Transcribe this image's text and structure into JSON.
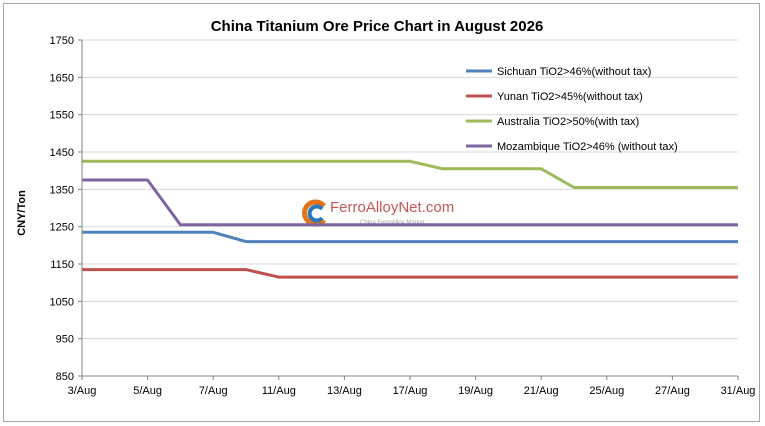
{
  "chart_data": {
    "type": "line",
    "title": "China Titanium Ore Price Chart in August 2026",
    "xlabel": "",
    "ylabel": "CNY/Ton",
    "ylim": [
      850,
      1750
    ],
    "yticks": [
      850,
      950,
      1050,
      1150,
      1250,
      1350,
      1450,
      1550,
      1650,
      1750
    ],
    "x": [
      "3/Aug",
      "4/Aug",
      "5/Aug",
      "6/Aug",
      "7/Aug",
      "10/Aug",
      "11/Aug",
      "12/Aug",
      "13/Aug",
      "14/Aug",
      "17/Aug",
      "18/Aug",
      "19/Aug",
      "20/Aug",
      "21/Aug",
      "24/Aug",
      "25/Aug",
      "26/Aug",
      "27/Aug",
      "28/Aug",
      "31/Aug"
    ],
    "xticks": [
      "3/Aug",
      "5/Aug",
      "7/Aug",
      "11/Aug",
      "13/Aug",
      "17/Aug",
      "19/Aug",
      "21/Aug",
      "25/Aug",
      "27/Aug",
      "31/Aug"
    ],
    "grid": "horizontal",
    "legend_position": "top-right",
    "series": [
      {
        "name": "Sichuan TiO2>46%(without tax)",
        "color": "#4f81bd",
        "values": [
          1235,
          1235,
          1235,
          1235,
          1235,
          1210,
          1210,
          1210,
          1210,
          1210,
          1210,
          1210,
          1210,
          1210,
          1210,
          1210,
          1210,
          1210,
          1210,
          1210,
          1210
        ]
      },
      {
        "name": "Yunan TiO2>45%(without tax)",
        "color": "#c0504d",
        "values": [
          1135,
          1135,
          1135,
          1135,
          1135,
          1135,
          1115,
          1115,
          1115,
          1115,
          1115,
          1115,
          1115,
          1115,
          1115,
          1115,
          1115,
          1115,
          1115,
          1115,
          1115
        ]
      },
      {
        "name": "Australia TiO2>50%(with tax)",
        "color": "#9bbb59",
        "values": [
          1425,
          1425,
          1425,
          1425,
          1425,
          1425,
          1425,
          1425,
          1425,
          1425,
          1425,
          1405,
          1405,
          1405,
          1405,
          1355,
          1355,
          1355,
          1355,
          1355,
          1355
        ]
      },
      {
        "name": "Mozambique TiO2>46% (without tax)",
        "color": "#8064a2",
        "values": [
          1375,
          1375,
          1375,
          1255,
          1255,
          1255,
          1255,
          1255,
          1255,
          1255,
          1255,
          1255,
          1255,
          1255,
          1255,
          1255,
          1255,
          1255,
          1255,
          1255,
          1255
        ]
      }
    ]
  },
  "watermark": {
    "brand": "FerroAlloyNet.com",
    "tagline": "China FerroAlloy Market",
    "logo_colors": [
      "#e36c0a",
      "#1f6fb5"
    ]
  }
}
